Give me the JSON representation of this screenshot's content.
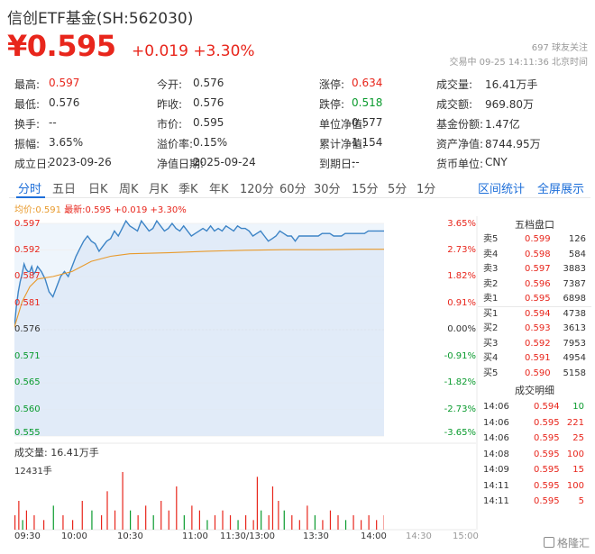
{
  "header": {
    "title": "信创ETF基金(SH:562030)",
    "price": "¥0.595",
    "change": "+0.019 +3.30%",
    "followers": "697 球友关注",
    "status": "交易中 09-25 14:11:36 北京时间"
  },
  "stats": [
    {
      "label": "最高:",
      "value": "0.597",
      "color": "red"
    },
    {
      "label": "今开:",
      "value": "0.576",
      "color": ""
    },
    {
      "label": "涨停:",
      "value": "0.634",
      "color": "red"
    },
    {
      "label": "成交量:",
      "value": "16.41万手",
      "color": ""
    },
    {
      "label": "最低:",
      "value": "0.576",
      "color": ""
    },
    {
      "label": "昨收:",
      "value": "0.576",
      "color": ""
    },
    {
      "label": "跌停:",
      "value": "0.518",
      "color": "green"
    },
    {
      "label": "成交额:",
      "value": "969.80万",
      "color": ""
    },
    {
      "label": "换手:",
      "value": "--",
      "color": ""
    },
    {
      "label": "市价:",
      "value": "0.595",
      "color": ""
    },
    {
      "label": "单位净值:",
      "value": "0.577",
      "color": ""
    },
    {
      "label": "基金份额:",
      "value": "1.47亿",
      "color": ""
    },
    {
      "label": "振幅:",
      "value": "3.65%",
      "color": ""
    },
    {
      "label": "溢价率:",
      "value": "0.15%",
      "color": ""
    },
    {
      "label": "累计净值:",
      "value": "1.154",
      "color": ""
    },
    {
      "label": "资产净值:",
      "value": "8744.95万",
      "color": ""
    },
    {
      "label": "成立日:",
      "value": "2023-09-26",
      "color": ""
    },
    {
      "label": "净值日期:",
      "value": "2025-09-24",
      "color": ""
    },
    {
      "label": "到期日:",
      "value": "--",
      "color": ""
    },
    {
      "label": "货币单位:",
      "value": "CNY",
      "color": ""
    }
  ],
  "tabs": [
    "分时",
    "五日",
    "日K",
    "周K",
    "月K",
    "季K",
    "年K",
    "120分",
    "60分",
    "30分",
    "15分",
    "5分",
    "1分"
  ],
  "tabs_right": [
    "区间统计",
    "全屏展示"
  ],
  "legend": {
    "avg": "均价:0.591",
    "last": "最新:0.595 +0.019 +3.30%"
  },
  "chart_data": {
    "type": "line",
    "title": "",
    "x_ticks": [
      "09:30",
      "10:00",
      "10:30",
      "11:00",
      "11:30/13:00",
      "13:30",
      "14:00",
      "14:30",
      "15:00"
    ],
    "y_ticks": [
      "0.597",
      "0.592",
      "0.587",
      "0.581",
      "0.576",
      "0.571",
      "0.565",
      "0.560",
      "0.555"
    ],
    "pct_ticks": [
      "3.65%",
      "2.73%",
      "1.82%",
      "0.91%",
      "0.00%",
      "-0.91%",
      "-1.82%",
      "-2.73%",
      "-3.65%"
    ],
    "ylim": [
      0.555,
      0.597
    ],
    "prev_close": 0.576,
    "series": [
      {
        "name": "最新",
        "color": "#3d84c6",
        "points": [
          [
            0,
            0.5765
          ],
          [
            1,
            0.5805
          ],
          [
            2,
            0.5835
          ],
          [
            3,
            0.5855
          ],
          [
            4,
            0.587
          ],
          [
            5,
            0.589
          ],
          [
            6,
            0.588
          ],
          [
            7,
            0.5875
          ],
          [
            8,
            0.5875
          ],
          [
            9,
            0.5885
          ],
          [
            10,
            0.587
          ],
          [
            11,
            0.5875
          ],
          [
            12,
            0.5885
          ],
          [
            14,
            0.5875
          ],
          [
            16,
            0.586
          ],
          [
            18,
            0.5835
          ],
          [
            20,
            0.5825
          ],
          [
            22,
            0.5845
          ],
          [
            24,
            0.5865
          ],
          [
            26,
            0.5875
          ],
          [
            28,
            0.5865
          ],
          [
            30,
            0.5885
          ],
          [
            32,
            0.5905
          ],
          [
            34,
            0.592
          ],
          [
            36,
            0.5935
          ],
          [
            38,
            0.5945
          ],
          [
            40,
            0.5935
          ],
          [
            42,
            0.593
          ],
          [
            44,
            0.5915
          ],
          [
            46,
            0.5925
          ],
          [
            48,
            0.5935
          ],
          [
            50,
            0.594
          ],
          [
            52,
            0.5955
          ],
          [
            54,
            0.5945
          ],
          [
            56,
            0.596
          ],
          [
            58,
            0.5975
          ],
          [
            60,
            0.5965
          ],
          [
            62,
            0.596
          ],
          [
            64,
            0.5955
          ],
          [
            66,
            0.5975
          ],
          [
            68,
            0.5965
          ],
          [
            70,
            0.5955
          ],
          [
            72,
            0.596
          ],
          [
            74,
            0.5975
          ],
          [
            76,
            0.5965
          ],
          [
            78,
            0.5955
          ],
          [
            80,
            0.596
          ],
          [
            82,
            0.597
          ],
          [
            84,
            0.596
          ],
          [
            86,
            0.5955
          ],
          [
            88,
            0.5965
          ],
          [
            90,
            0.5955
          ],
          [
            92,
            0.5945
          ],
          [
            94,
            0.595
          ],
          [
            96,
            0.5955
          ],
          [
            98,
            0.596
          ],
          [
            100,
            0.5955
          ],
          [
            102,
            0.5965
          ],
          [
            104,
            0.5955
          ],
          [
            106,
            0.596
          ],
          [
            108,
            0.5955
          ],
          [
            110,
            0.5965
          ],
          [
            112,
            0.596
          ],
          [
            114,
            0.5955
          ],
          [
            116,
            0.5965
          ],
          [
            118,
            0.596
          ],
          [
            120,
            0.596
          ],
          [
            122,
            0.5955
          ],
          [
            124,
            0.5945
          ],
          [
            126,
            0.595
          ],
          [
            128,
            0.5955
          ],
          [
            130,
            0.5945
          ],
          [
            132,
            0.5935
          ],
          [
            134,
            0.594
          ],
          [
            136,
            0.5945
          ],
          [
            138,
            0.5955
          ],
          [
            140,
            0.595
          ],
          [
            142,
            0.5945
          ],
          [
            144,
            0.5945
          ],
          [
            146,
            0.5935
          ],
          [
            148,
            0.5945
          ],
          [
            150,
            0.5945
          ],
          [
            152,
            0.5945
          ],
          [
            154,
            0.5945
          ],
          [
            156,
            0.5945
          ],
          [
            158,
            0.5945
          ],
          [
            160,
            0.595
          ],
          [
            162,
            0.595
          ],
          [
            164,
            0.595
          ],
          [
            166,
            0.5945
          ],
          [
            168,
            0.5945
          ],
          [
            170,
            0.5945
          ],
          [
            172,
            0.595
          ],
          [
            174,
            0.595
          ],
          [
            176,
            0.595
          ],
          [
            178,
            0.595
          ],
          [
            180,
            0.595
          ],
          [
            182,
            0.595
          ],
          [
            184,
            0.5955
          ],
          [
            186,
            0.5955
          ],
          [
            188,
            0.5955
          ],
          [
            190,
            0.5955
          ],
          [
            192,
            0.5955
          ],
          [
            194,
            0.5955
          ],
          [
            196,
            0.5955
          ],
          [
            198,
            0.5955
          ],
          [
            200,
            0.5955
          ],
          [
            202,
            0.5955
          ]
        ]
      },
      {
        "name": "均价",
        "color": "#e89a2c",
        "points": [
          [
            0,
            0.5765
          ],
          [
            4,
            0.5815
          ],
          [
            8,
            0.5845
          ],
          [
            12,
            0.586
          ],
          [
            20,
            0.5865
          ],
          [
            30,
            0.5875
          ],
          [
            40,
            0.5895
          ],
          [
            50,
            0.5905
          ],
          [
            60,
            0.591
          ],
          [
            80,
            0.5912
          ],
          [
            100,
            0.5915
          ],
          [
            120,
            0.5917
          ],
          [
            140,
            0.5918
          ],
          [
            160,
            0.5918
          ],
          [
            180,
            0.5919
          ],
          [
            202,
            0.5919
          ]
        ]
      }
    ],
    "volume_label": "成交量: 16.41万手",
    "volume_max": "12431手",
    "volume_bars": [
      [
        0,
        3,
        "r"
      ],
      [
        2,
        6,
        "r"
      ],
      [
        4,
        2,
        "g"
      ],
      [
        6,
        4,
        "r"
      ],
      [
        10,
        3,
        "r"
      ],
      [
        15,
        2,
        "r"
      ],
      [
        20,
        5,
        "g"
      ],
      [
        25,
        3,
        "r"
      ],
      [
        30,
        2,
        "r"
      ],
      [
        35,
        6,
        "r"
      ],
      [
        40,
        4,
        "g"
      ],
      [
        45,
        3,
        "r"
      ],
      [
        48,
        8,
        "r"
      ],
      [
        52,
        4,
        "r"
      ],
      [
        56,
        12,
        "r"
      ],
      [
        60,
        4,
        "g"
      ],
      [
        64,
        3,
        "r"
      ],
      [
        68,
        5,
        "r"
      ],
      [
        72,
        3,
        "g"
      ],
      [
        76,
        6,
        "r"
      ],
      [
        80,
        4,
        "r"
      ],
      [
        84,
        9,
        "r"
      ],
      [
        88,
        3,
        "g"
      ],
      [
        92,
        5,
        "r"
      ],
      [
        96,
        4,
        "r"
      ],
      [
        100,
        2,
        "g"
      ],
      [
        104,
        3,
        "r"
      ],
      [
        108,
        4,
        "r"
      ],
      [
        112,
        3,
        "r"
      ],
      [
        116,
        2,
        "g"
      ],
      [
        120,
        3,
        "r"
      ],
      [
        124,
        2,
        "r"
      ],
      [
        126,
        11,
        "r"
      ],
      [
        128,
        4,
        "g"
      ],
      [
        132,
        3,
        "r"
      ],
      [
        134,
        9,
        "r"
      ],
      [
        137,
        6,
        "r"
      ],
      [
        140,
        4,
        "g"
      ],
      [
        144,
        3,
        "r"
      ],
      [
        148,
        2,
        "r"
      ],
      [
        152,
        5,
        "r"
      ],
      [
        156,
        3,
        "g"
      ],
      [
        160,
        2,
        "r"
      ],
      [
        164,
        4,
        "r"
      ],
      [
        168,
        3,
        "r"
      ],
      [
        172,
        2,
        "g"
      ],
      [
        176,
        3,
        "r"
      ],
      [
        180,
        2,
        "r"
      ],
      [
        184,
        3,
        "r"
      ],
      [
        188,
        2,
        "r"
      ],
      [
        192,
        3,
        "r"
      ],
      [
        196,
        2,
        "r"
      ],
      [
        200,
        2,
        "r"
      ]
    ]
  },
  "order_book": {
    "title": "五档盘口",
    "rows": [
      {
        "label": "卖5",
        "price": "0.599",
        "vol": "126",
        "color": "red"
      },
      {
        "label": "卖4",
        "price": "0.598",
        "vol": "584",
        "color": "red"
      },
      {
        "label": "卖3",
        "price": "0.597",
        "vol": "3883",
        "color": "red"
      },
      {
        "label": "卖2",
        "price": "0.596",
        "vol": "7387",
        "color": "red"
      },
      {
        "label": "卖1",
        "price": "0.595",
        "vol": "6898",
        "color": "red"
      },
      {
        "label": "买1",
        "price": "0.594",
        "vol": "4738",
        "color": "red"
      },
      {
        "label": "买2",
        "price": "0.593",
        "vol": "3613",
        "color": "red"
      },
      {
        "label": "买3",
        "price": "0.592",
        "vol": "7953",
        "color": "red"
      },
      {
        "label": "买4",
        "price": "0.591",
        "vol": "4954",
        "color": "red"
      },
      {
        "label": "买5",
        "price": "0.590",
        "vol": "5158",
        "color": "red"
      }
    ]
  },
  "trades": {
    "title": "成交明细",
    "rows": [
      {
        "time": "14:06",
        "price": "0.594",
        "vol": "10",
        "color": "green"
      },
      {
        "time": "14:06",
        "price": "0.595",
        "vol": "221",
        "color": "red"
      },
      {
        "time": "14:06",
        "price": "0.595",
        "vol": "25",
        "color": "red"
      },
      {
        "time": "14:08",
        "price": "0.595",
        "vol": "100",
        "color": "red"
      },
      {
        "time": "14:09",
        "price": "0.595",
        "vol": "15",
        "color": "red"
      },
      {
        "time": "14:11",
        "price": "0.595",
        "vol": "100",
        "color": "red"
      },
      {
        "time": "14:11",
        "price": "0.595",
        "vol": "5",
        "color": "red"
      }
    ]
  },
  "watermark": "格隆汇"
}
